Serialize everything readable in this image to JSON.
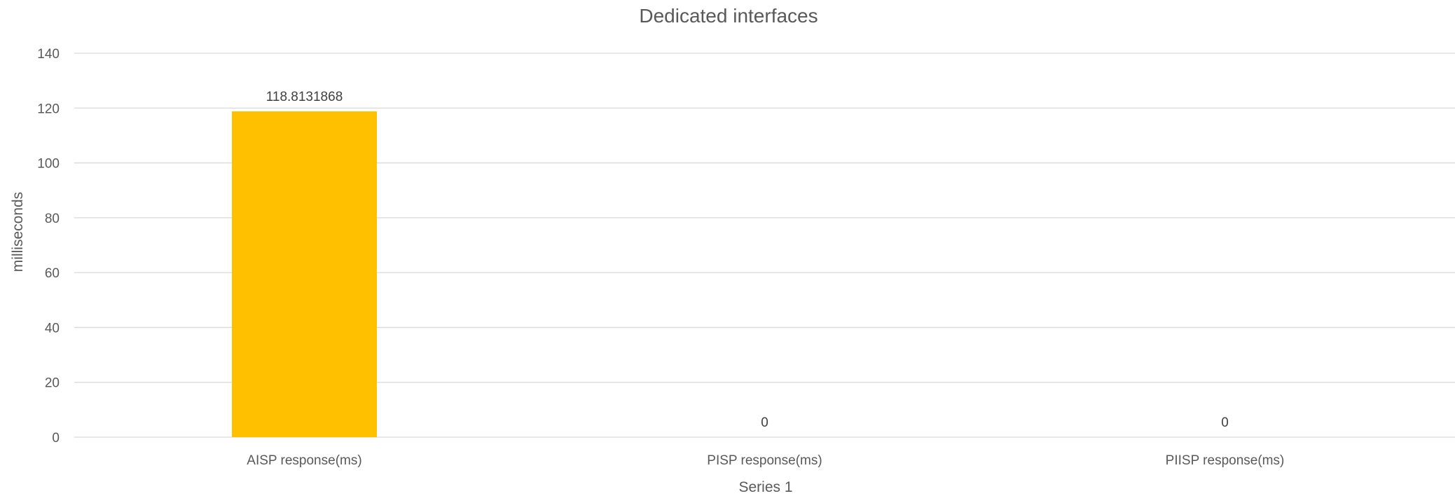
{
  "chart_data": {
    "type": "bar",
    "title": "Dedicated interfaces",
    "xlabel": "Series 1",
    "ylabel": "milliseconds",
    "categories": [
      "AISP response(ms)",
      "PISP response(ms)",
      "PIISP response(ms)"
    ],
    "series": [
      {
        "values": [
          118.8131868,
          0,
          0
        ],
        "data_labels": [
          "118.8131868",
          "0",
          "0"
        ]
      }
    ],
    "ylim": [
      0,
      140
    ],
    "yticks": [
      0,
      20,
      40,
      60,
      80,
      100,
      120,
      140
    ],
    "grid": true,
    "legend": "none",
    "bar_color": "#FFC000"
  }
}
